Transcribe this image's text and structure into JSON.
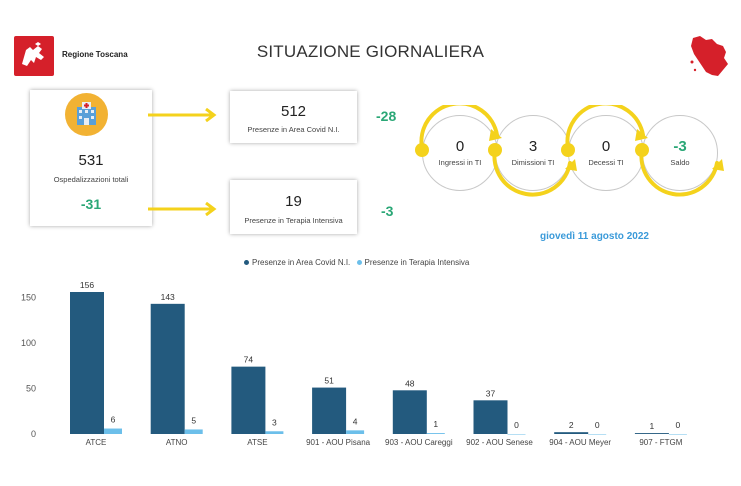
{
  "header": {
    "logo_text": "Regione Toscana",
    "title": "SITUAZIONE GIORNALIERA"
  },
  "summary": {
    "total": {
      "value": "531",
      "label": "Ospedalizzazioni totali",
      "delta": "-31"
    },
    "area_covid": {
      "value": "512",
      "label": "Presenze in Area Covid N.I.",
      "delta": "-28"
    },
    "terapia_intensiva": {
      "value": "19",
      "label": "Presenze in Terapia Intensiva",
      "delta": "-3"
    }
  },
  "flow": [
    {
      "value": "0",
      "label": "Ingressi in TI"
    },
    {
      "value": "3",
      "label": "Dimissioni TI"
    },
    {
      "value": "0",
      "label": "Decessi TI"
    },
    {
      "value": "-3",
      "label": "Saldo"
    }
  ],
  "date": "giovedì 11 agosto 2022",
  "colors": {
    "dark_series": "#235a7e",
    "light_series": "#6cbfea",
    "delta_green": "#2aa776",
    "arrow_yellow": "#f4d21c",
    "date_blue": "#3a9ad9",
    "logo_red": "#d5202a"
  },
  "icons": [
    "regione-toscana-logo-icon",
    "tuscany-map-icon",
    "hospital-icon",
    "arrow-right-icon"
  ],
  "chart_data": {
    "type": "bar",
    "categories": [
      "ATCE",
      "ATNO",
      "ATSE",
      "901 - AOU Pisana",
      "903 - AOU Careggi",
      "902 - AOU Senese",
      "904 - AOU Meyer",
      "907 - FTGM"
    ],
    "series": [
      {
        "name": "Presenze in Area Covid N.I.",
        "values": [
          156,
          143,
          74,
          51,
          48,
          37,
          2,
          1
        ]
      },
      {
        "name": "Presenze in Terapia Intensiva",
        "values": [
          6,
          5,
          3,
          4,
          1,
          0,
          0,
          0
        ]
      }
    ],
    "yticks": [
      "0",
      "50",
      "100",
      "150"
    ],
    "ylim": [
      0,
      160
    ],
    "legend_position": "top-center",
    "grid": false
  }
}
